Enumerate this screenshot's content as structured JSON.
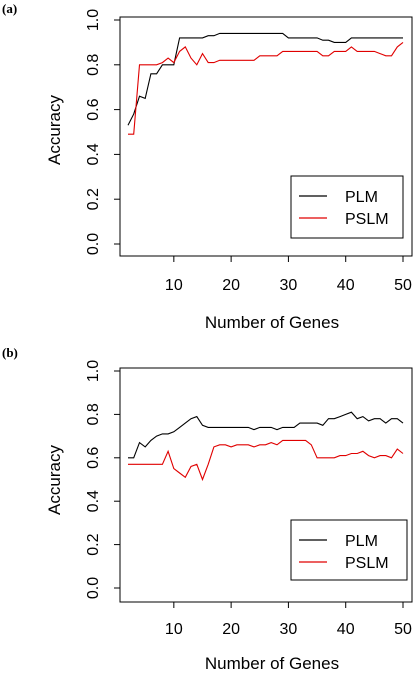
{
  "chart_data": [
    {
      "panel_label": "(a)",
      "type": "line",
      "xlabel": "Number of Genes",
      "ylabel": "Accuracy",
      "xlim": [
        2,
        50
      ],
      "ylim": [
        0,
        1
      ],
      "xticks": [
        "10",
        "20",
        "30",
        "40",
        "50"
      ],
      "yticks": [
        "0.0",
        "0.2",
        "0.4",
        "0.6",
        "0.8",
        "1.0"
      ],
      "legend_position": "bottom-right",
      "series": [
        {
          "name": "PLM",
          "color": "#000000",
          "x": [
            2,
            3,
            4,
            5,
            6,
            7,
            8,
            9,
            10,
            11,
            12,
            13,
            14,
            15,
            16,
            17,
            18,
            19,
            20,
            21,
            22,
            23,
            24,
            25,
            26,
            27,
            28,
            29,
            30,
            31,
            32,
            33,
            34,
            35,
            36,
            37,
            38,
            39,
            40,
            41,
            42,
            43,
            44,
            45,
            46,
            47,
            48,
            49,
            50
          ],
          "y": [
            0.53,
            0.58,
            0.66,
            0.65,
            0.76,
            0.76,
            0.8,
            0.8,
            0.8,
            0.92,
            0.92,
            0.92,
            0.92,
            0.92,
            0.93,
            0.93,
            0.94,
            0.94,
            0.94,
            0.94,
            0.94,
            0.94,
            0.94,
            0.94,
            0.94,
            0.94,
            0.94,
            0.94,
            0.92,
            0.92,
            0.92,
            0.92,
            0.92,
            0.92,
            0.91,
            0.91,
            0.9,
            0.9,
            0.9,
            0.92,
            0.92,
            0.92,
            0.92,
            0.92,
            0.92,
            0.92,
            0.92,
            0.92,
            0.92
          ]
        },
        {
          "name": "PSLM",
          "color": "#e00000",
          "x": [
            2,
            3,
            4,
            5,
            6,
            7,
            8,
            9,
            10,
            11,
            12,
            13,
            14,
            15,
            16,
            17,
            18,
            19,
            20,
            21,
            22,
            23,
            24,
            25,
            26,
            27,
            28,
            29,
            30,
            31,
            32,
            33,
            34,
            35,
            36,
            37,
            38,
            39,
            40,
            41,
            42,
            43,
            44,
            45,
            46,
            47,
            48,
            49,
            50
          ],
          "y": [
            0.49,
            0.49,
            0.8,
            0.8,
            0.8,
            0.8,
            0.81,
            0.83,
            0.81,
            0.86,
            0.88,
            0.83,
            0.8,
            0.85,
            0.81,
            0.81,
            0.82,
            0.82,
            0.82,
            0.82,
            0.82,
            0.82,
            0.82,
            0.84,
            0.84,
            0.84,
            0.84,
            0.86,
            0.86,
            0.86,
            0.86,
            0.86,
            0.86,
            0.86,
            0.84,
            0.84,
            0.86,
            0.86,
            0.86,
            0.88,
            0.86,
            0.86,
            0.86,
            0.86,
            0.85,
            0.84,
            0.84,
            0.88,
            0.9
          ]
        }
      ]
    },
    {
      "panel_label": "(b)",
      "type": "line",
      "xlabel": "Number of Genes",
      "ylabel": "Accuracy",
      "xlim": [
        2,
        50
      ],
      "ylim": [
        0,
        1
      ],
      "xticks": [
        "10",
        "20",
        "30",
        "40",
        "50"
      ],
      "yticks": [
        "0.0",
        "0.2",
        "0.4",
        "0.6",
        "0.8",
        "1.0"
      ],
      "legend_position": "bottom-right",
      "series": [
        {
          "name": "PLM",
          "color": "#000000",
          "x": [
            2,
            3,
            4,
            5,
            6,
            7,
            8,
            9,
            10,
            11,
            12,
            13,
            14,
            15,
            16,
            17,
            18,
            19,
            20,
            21,
            22,
            23,
            24,
            25,
            26,
            27,
            28,
            29,
            30,
            31,
            32,
            33,
            34,
            35,
            36,
            37,
            38,
            39,
            40,
            41,
            42,
            43,
            44,
            45,
            46,
            47,
            48,
            49,
            50
          ],
          "y": [
            0.6,
            0.6,
            0.67,
            0.65,
            0.68,
            0.7,
            0.71,
            0.71,
            0.72,
            0.74,
            0.76,
            0.78,
            0.79,
            0.75,
            0.74,
            0.74,
            0.74,
            0.74,
            0.74,
            0.74,
            0.74,
            0.74,
            0.73,
            0.74,
            0.74,
            0.74,
            0.73,
            0.74,
            0.74,
            0.74,
            0.76,
            0.76,
            0.76,
            0.76,
            0.75,
            0.78,
            0.78,
            0.79,
            0.8,
            0.81,
            0.78,
            0.79,
            0.77,
            0.78,
            0.78,
            0.76,
            0.78,
            0.78,
            0.76
          ]
        },
        {
          "name": "PSLM",
          "color": "#e00000",
          "x": [
            2,
            3,
            4,
            5,
            6,
            7,
            8,
            9,
            10,
            11,
            12,
            13,
            14,
            15,
            16,
            17,
            18,
            19,
            20,
            21,
            22,
            23,
            24,
            25,
            26,
            27,
            28,
            29,
            30,
            31,
            32,
            33,
            34,
            35,
            36,
            37,
            38,
            39,
            40,
            41,
            42,
            43,
            44,
            45,
            46,
            47,
            48,
            49,
            50
          ],
          "y": [
            0.57,
            0.57,
            0.57,
            0.57,
            0.57,
            0.57,
            0.57,
            0.63,
            0.55,
            0.53,
            0.51,
            0.56,
            0.57,
            0.5,
            0.57,
            0.65,
            0.66,
            0.66,
            0.65,
            0.66,
            0.66,
            0.66,
            0.65,
            0.66,
            0.66,
            0.67,
            0.66,
            0.68,
            0.68,
            0.68,
            0.68,
            0.68,
            0.66,
            0.6,
            0.6,
            0.6,
            0.6,
            0.61,
            0.61,
            0.62,
            0.62,
            0.63,
            0.61,
            0.6,
            0.61,
            0.61,
            0.6,
            0.64,
            0.62
          ]
        }
      ]
    }
  ]
}
